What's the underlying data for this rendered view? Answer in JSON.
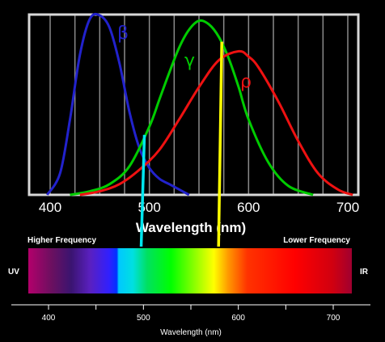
{
  "chart_data": [
    {
      "type": "line",
      "xlabel": "Wavelength (nm)",
      "ylabel": "",
      "xlim": [
        380,
        720
      ],
      "ylim": [
        0,
        1
      ],
      "grid": true,
      "tick_labels": [
        "400",
        "500",
        "600",
        "700"
      ],
      "series": [
        {
          "name": "β",
          "color": "#2222cc",
          "x": [
            397,
            410,
            420,
            430,
            440,
            450,
            460,
            470,
            480,
            490,
            500,
            510,
            520,
            530,
            540
          ],
          "values": [
            0.0,
            0.12,
            0.42,
            0.78,
            0.98,
            1.0,
            0.93,
            0.73,
            0.46,
            0.26,
            0.15,
            0.09,
            0.06,
            0.03,
            0.0
          ]
        },
        {
          "name": "γ",
          "color": "#00cc00",
          "x": [
            420,
            440,
            460,
            480,
            500,
            510,
            520,
            530,
            540,
            550,
            560,
            570,
            580,
            590,
            600,
            620,
            640,
            665
          ],
          "values": [
            0.0,
            0.02,
            0.06,
            0.16,
            0.38,
            0.53,
            0.68,
            0.82,
            0.92,
            0.97,
            0.95,
            0.88,
            0.76,
            0.6,
            0.42,
            0.18,
            0.05,
            0.0
          ]
        },
        {
          "name": "ρ",
          "color": "#ee1111",
          "x": [
            430,
            450,
            470,
            490,
            510,
            530,
            550,
            570,
            590,
            600,
            610,
            630,
            650,
            670,
            690,
            705
          ],
          "values": [
            0.0,
            0.02,
            0.06,
            0.14,
            0.25,
            0.42,
            0.6,
            0.75,
            0.8,
            0.77,
            0.71,
            0.52,
            0.3,
            0.12,
            0.03,
            0.0
          ]
        }
      ],
      "markers": [
        {
          "x": 495,
          "color": "#00e5ee"
        },
        {
          "x": 573,
          "color": "#ffff00"
        }
      ]
    },
    {
      "type": "area",
      "xlabel": "Wavelength (nm)",
      "xlim": [
        380,
        720
      ],
      "tick_labels": [
        "400",
        "500",
        "600",
        "700"
      ],
      "annotations": {
        "left_end": "UV",
        "right_end": "IR",
        "left_top": "Higher Frequency",
        "right_top": "Lower Frequency"
      },
      "gradient_stops": [
        {
          "x": 380,
          "color": "#b3006b"
        },
        {
          "x": 405,
          "color": "#6a1060"
        },
        {
          "x": 425,
          "color": "#3a1470"
        },
        {
          "x": 445,
          "color": "#5a20c0"
        },
        {
          "x": 465,
          "color": "#3020ff"
        },
        {
          "x": 473,
          "color": "#0030ff"
        },
        {
          "x": 475,
          "color": "#00c8ff"
        },
        {
          "x": 490,
          "color": "#00e0e0"
        },
        {
          "x": 505,
          "color": "#00e060"
        },
        {
          "x": 530,
          "color": "#00ff00"
        },
        {
          "x": 560,
          "color": "#aaff00"
        },
        {
          "x": 575,
          "color": "#ffff00"
        },
        {
          "x": 590,
          "color": "#ff9900"
        },
        {
          "x": 610,
          "color": "#ff3300"
        },
        {
          "x": 660,
          "color": "#ff0000"
        },
        {
          "x": 700,
          "color": "#d00010"
        },
        {
          "x": 720,
          "color": "#a00030"
        }
      ]
    }
  ]
}
